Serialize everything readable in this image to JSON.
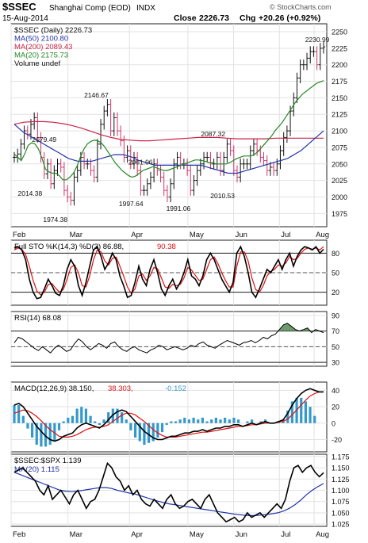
{
  "header": {
    "symbol": "$SSEC",
    "name": "Shanghai Comp (EOD)",
    "exchange": "INDX",
    "date": "15-Aug-2014",
    "close_label": "Close",
    "close": "2226.73",
    "chg_label": "Chg",
    "chg": "+20.26 (+0.92%)",
    "watermark": "© StockCharts.com",
    "watermark_sub": "StockCharts.com"
  },
  "colors": {
    "price_up": "#111111",
    "price_down": "#d0356b",
    "ma50": "#2233aa",
    "ma200": "#cc2244",
    "ma20": "#228822",
    "sto_k": "#000000",
    "sto_d": "#dd1111",
    "rsi": "#000000",
    "rsi_fill": "#558855",
    "macd": "#000000",
    "signal": "#dd1111",
    "hist": "#3399cc",
    "ratio": "#000000",
    "ratio_ma": "#2233aa"
  },
  "chart_data": [
    {
      "type": "ohlc",
      "panel": "price",
      "legend": [
        {
          "label": "$SSEC (Daily) 2226.73",
          "color_key": "price_up"
        },
        {
          "label": "MA(50) 2100.80",
          "color_key": "ma50"
        },
        {
          "label": "MA(200) 2089.43",
          "color_key": "ma200"
        },
        {
          "label": "MA(20) 2175.73",
          "color_key": "ma20"
        },
        {
          "label": "Volume undef",
          "color_key": "price_up"
        }
      ],
      "ylim": [
        1955,
        2262
      ],
      "yticks": [
        1975,
        2000,
        2025,
        2050,
        2075,
        2100,
        2125,
        2150,
        2175,
        2200,
        2225,
        2250
      ],
      "annotations": [
        {
          "text": "2230.99",
          "x": 0.97,
          "y": 2231
        },
        {
          "text": "2146.67",
          "x": 0.27,
          "y": 2147
        },
        {
          "text": "2079.49",
          "x": 0.105,
          "y": 2080
        },
        {
          "text": "2087.32",
          "x": 0.64,
          "y": 2088
        },
        {
          "text": "2061.06",
          "x": 0.41,
          "y": 2061
        },
        {
          "text": "2014.38",
          "x": 0.06,
          "y": 2014
        },
        {
          "text": "1974.38",
          "x": 0.14,
          "y": 1974
        },
        {
          "text": "1997.64",
          "x": 0.38,
          "y": 1998
        },
        {
          "text": "1991.06",
          "x": 0.53,
          "y": 1991
        },
        {
          "text": "2010.53",
          "x": 0.67,
          "y": 2010
        }
      ],
      "close": [
        2060,
        2065,
        2080,
        2100,
        2095,
        2110,
        2120,
        2090,
        2060,
        2035,
        2050,
        2020,
        2040,
        2050,
        2045,
        2010,
        2000,
        1995,
        2030,
        2040,
        2060,
        2050,
        2050,
        2040,
        2030,
        2080,
        2110,
        2130,
        2140,
        2100,
        2120,
        2100,
        2085,
        2060,
        2070,
        2050,
        2060,
        2040,
        2010,
        2010,
        2020,
        2030,
        2050,
        2040,
        2030,
        2010,
        2000,
        2020,
        2050,
        2060,
        2050,
        2050,
        2040,
        2010,
        2025,
        2040,
        2050,
        2060,
        2060,
        2050,
        2050,
        2060,
        2040,
        2060,
        2080,
        2070,
        2040,
        2030,
        2050,
        2050,
        2050,
        2070,
        2080,
        2070,
        2060,
        2055,
        2040,
        2045,
        2040,
        2050,
        2070,
        2090,
        2100,
        2130,
        2150,
        2180,
        2200,
        2200,
        2210,
        2220,
        2220,
        2200,
        2225,
        2227
      ],
      "ma20": [
        2065,
        2060,
        2055,
        2065,
        2078,
        2082,
        2080,
        2072,
        2058,
        2042,
        2038,
        2036,
        2036,
        2032,
        2026,
        2026,
        2030,
        2036,
        2046,
        2060,
        2072,
        2080,
        2084,
        2086,
        2085,
        2082,
        2076,
        2068,
        2060,
        2052,
        2046,
        2040,
        2036,
        2032,
        2030,
        2032,
        2036,
        2040,
        2042,
        2044,
        2046,
        2044,
        2042,
        2040,
        2040,
        2042,
        2044,
        2046,
        2048,
        2050,
        2052,
        2054,
        2056,
        2056,
        2055,
        2054,
        2052,
        2052,
        2050,
        2050,
        2050,
        2050,
        2052,
        2055,
        2058,
        2060,
        2062,
        2062,
        2062,
        2064,
        2068,
        2074,
        2080,
        2086,
        2092,
        2100,
        2106,
        2112,
        2120,
        2128,
        2136,
        2144,
        2150,
        2156,
        2160,
        2164,
        2168,
        2172,
        2174,
        2176
      ],
      "ma50": [
        2110,
        2104,
        2098,
        2094,
        2090,
        2086,
        2082,
        2078,
        2074,
        2070,
        2066,
        2062,
        2058,
        2056,
        2054,
        2054,
        2054,
        2054,
        2056,
        2058,
        2060,
        2062,
        2064,
        2064,
        2064,
        2062,
        2060,
        2056,
        2054,
        2052,
        2050,
        2048,
        2048,
        2048,
        2048,
        2048,
        2048,
        2048,
        2048,
        2048,
        2048,
        2048,
        2046,
        2044,
        2042,
        2040,
        2038,
        2036,
        2036,
        2036,
        2038,
        2040,
        2042,
        2044,
        2046,
        2048,
        2050,
        2052,
        2054,
        2056,
        2058,
        2062,
        2066,
        2070,
        2076,
        2082,
        2088,
        2094,
        2100
      ],
      "ma200": [
        2110,
        2113,
        2114,
        2114,
        2113,
        2111,
        2108,
        2104,
        2099,
        2094,
        2090,
        2087,
        2086,
        2085,
        2085,
        2086,
        2087,
        2088,
        2089,
        2090,
        2090,
        2090,
        2089,
        2088,
        2088,
        2088,
        2088,
        2089,
        2089,
        2089,
        2089,
        2089,
        2089
      ]
    },
    {
      "type": "line",
      "panel": "stochastic",
      "legend": [
        {
          "label": "Full STO %K(14,3) %D(3) 86.88,",
          "color_key": "sto_k"
        },
        {
          "label": "90.38",
          "color_key": "sto_d"
        }
      ],
      "ylim": [
        0,
        100
      ],
      "yticks": [
        20,
        50,
        80
      ],
      "series": [
        {
          "name": "%K",
          "values": [
            88,
            90,
            85,
            70,
            40,
            20,
            10,
            12,
            25,
            40,
            30,
            18,
            15,
            30,
            55,
            70,
            60,
            30,
            15,
            35,
            60,
            85,
            90,
            75,
            55,
            65,
            80,
            70,
            45,
            30,
            12,
            15,
            35,
            60,
            40,
            30,
            55,
            70,
            50,
            25,
            15,
            30,
            40,
            25,
            35,
            50,
            70,
            45,
            40,
            30,
            45,
            70,
            80,
            70,
            55,
            40,
            30,
            20,
            35,
            80,
            90,
            75,
            50,
            20,
            12,
            25,
            40,
            55,
            50,
            60,
            70,
            55,
            70,
            80,
            60,
            75,
            85,
            90,
            88,
            85,
            90,
            80,
            86
          ]
        },
        {
          "name": "%D",
          "values": [
            85,
            88,
            86,
            78,
            60,
            38,
            22,
            16,
            20,
            32,
            33,
            26,
            20,
            24,
            40,
            58,
            62,
            50,
            30,
            28,
            45,
            70,
            85,
            82,
            68,
            62,
            72,
            74,
            60,
            45,
            28,
            18,
            25,
            45,
            48,
            38,
            45,
            58,
            56,
            42,
            28,
            26,
            32,
            30,
            32,
            42,
            58,
            54,
            46,
            38,
            40,
            55,
            70,
            74,
            64,
            50,
            38,
            28,
            28,
            60,
            82,
            82,
            68,
            42,
            24,
            20,
            30,
            45,
            52,
            55,
            62,
            60,
            65,
            75,
            70,
            72,
            80,
            86,
            88,
            86,
            88,
            85,
            90
          ]
        }
      ]
    },
    {
      "type": "line",
      "panel": "rsi",
      "legend": [
        {
          "label": "RSI(14) 68.08",
          "color_key": "rsi"
        }
      ],
      "ylim": [
        25,
        95
      ],
      "yticks": [
        30,
        50,
        70,
        90
      ],
      "series": [
        {
          "name": "RSI",
          "values": [
            55,
            62,
            60,
            56,
            52,
            48,
            45,
            50,
            46,
            42,
            48,
            52,
            48,
            44,
            46,
            54,
            60,
            56,
            50,
            46,
            50,
            54,
            52,
            48,
            54,
            56,
            50,
            46,
            44,
            48,
            50,
            46,
            44,
            42,
            46,
            48,
            52,
            50,
            46,
            48,
            50,
            48,
            46,
            48,
            52,
            50,
            54,
            56,
            52,
            50,
            48,
            52,
            55,
            58,
            56,
            54,
            52,
            55,
            56,
            58,
            55,
            58,
            62,
            60,
            64,
            66,
            72,
            78,
            80,
            76,
            72,
            70,
            72,
            74,
            68,
            72,
            70,
            68
          ]
        }
      ]
    },
    {
      "type": "line",
      "panel": "macd",
      "legend": [
        {
          "label": "MACD(12,26,9) 38.150,",
          "color_key": "macd"
        },
        {
          "label": "38.303,",
          "color_key": "signal"
        },
        {
          "label": "-0.152",
          "color_key": "hist"
        }
      ],
      "ylim": [
        -35,
        50
      ],
      "yticks": [
        -20,
        0,
        20,
        40
      ],
      "series": [
        {
          "name": "MACD",
          "values": [
            22,
            24,
            20,
            12,
            4,
            -4,
            -10,
            -16,
            -20,
            -22,
            -20,
            -16,
            -14,
            -12,
            -6,
            -2,
            0,
            -2,
            -4,
            -6,
            -2,
            4,
            10,
            14,
            16,
            14,
            8,
            2,
            -4,
            -10,
            -14,
            -18,
            -20,
            -20,
            -18,
            -16,
            -16,
            -14,
            -12,
            -12,
            -10,
            -10,
            -8,
            -10,
            -8,
            -6,
            -6,
            -4,
            -4,
            -2,
            -2,
            -4,
            -2,
            0,
            -2,
            0,
            2,
            0,
            0,
            2,
            4,
            12,
            22,
            30,
            36,
            40,
            42,
            40,
            38,
            38
          ]
        },
        {
          "name": "Signal",
          "values": [
            12,
            14,
            16,
            15,
            12,
            8,
            3,
            -3,
            -8,
            -12,
            -16,
            -17,
            -17,
            -16,
            -14,
            -11,
            -8,
            -6,
            -5,
            -5,
            -4,
            -2,
            2,
            6,
            10,
            12,
            12,
            10,
            6,
            2,
            -3,
            -8,
            -12,
            -15,
            -17,
            -17,
            -17,
            -16,
            -15,
            -14,
            -13,
            -12,
            -11,
            -11,
            -10,
            -9,
            -8,
            -7,
            -6,
            -5,
            -4,
            -4,
            -3,
            -2,
            -2,
            -1,
            0,
            0,
            0,
            1,
            2,
            5,
            10,
            16,
            22,
            28,
            33,
            36,
            38,
            38
          ]
        }
      ]
    },
    {
      "type": "line",
      "panel": "ratio",
      "legend": [
        {
          "label": "$SSEC:$SPX 1.139",
          "color_key": "ratio"
        },
        {
          "label": "MA(20) 1.115",
          "color_key": "ratio_ma"
        }
      ],
      "ylim": [
        1.02,
        1.18
      ],
      "yticks": [
        1.025,
        1.05,
        1.075,
        1.1,
        1.125,
        1.15,
        1.175
      ],
      "series": [
        {
          "name": "$SSEC:$SPX",
          "values": [
            1.14,
            1.145,
            1.15,
            1.14,
            1.13,
            1.12,
            1.1,
            1.09,
            1.11,
            1.08,
            1.09,
            1.1,
            1.085,
            1.07,
            1.09,
            1.1,
            1.08,
            1.06,
            1.075,
            1.08,
            1.1,
            1.13,
            1.16,
            1.15,
            1.13,
            1.12,
            1.1,
            1.11,
            1.09,
            1.1,
            1.08,
            1.07,
            1.065,
            1.08,
            1.07,
            1.06,
            1.08,
            1.09,
            1.07,
            1.06,
            1.065,
            1.075,
            1.08,
            1.07,
            1.06,
            1.08,
            1.09,
            1.07,
            1.05,
            1.04,
            1.03,
            1.035,
            1.04,
            1.03,
            1.035,
            1.05,
            1.04,
            1.045,
            1.05,
            1.04,
            1.05,
            1.06,
            1.07,
            1.06,
            1.08,
            1.12,
            1.15,
            1.155,
            1.14,
            1.15,
            1.155,
            1.14,
            1.13,
            1.139
          ]
        },
        {
          "name": "MA(20)",
          "values": [
            1.14,
            1.135,
            1.13,
            1.125,
            1.12,
            1.115,
            1.11,
            1.105,
            1.1,
            1.098,
            1.097,
            1.098,
            1.1,
            1.102,
            1.104,
            1.106,
            1.106,
            1.104,
            1.1,
            1.097,
            1.094,
            1.092,
            1.088,
            1.084,
            1.08,
            1.076,
            1.073,
            1.07,
            1.068,
            1.066,
            1.064,
            1.062,
            1.06,
            1.058,
            1.056,
            1.054,
            1.052,
            1.05,
            1.048,
            1.046,
            1.045,
            1.044,
            1.044,
            1.045,
            1.046,
            1.048,
            1.05,
            1.054,
            1.06,
            1.068,
            1.078,
            1.09,
            1.1,
            1.108,
            1.115
          ]
        }
      ]
    }
  ],
  "x_axis": {
    "months": [
      "Feb",
      "Mar",
      "Apr",
      "May",
      "Jun",
      "Jul",
      "Aug"
    ],
    "month_pos": [
      0.0,
      0.18,
      0.375,
      0.56,
      0.705,
      0.85,
      0.96
    ]
  }
}
